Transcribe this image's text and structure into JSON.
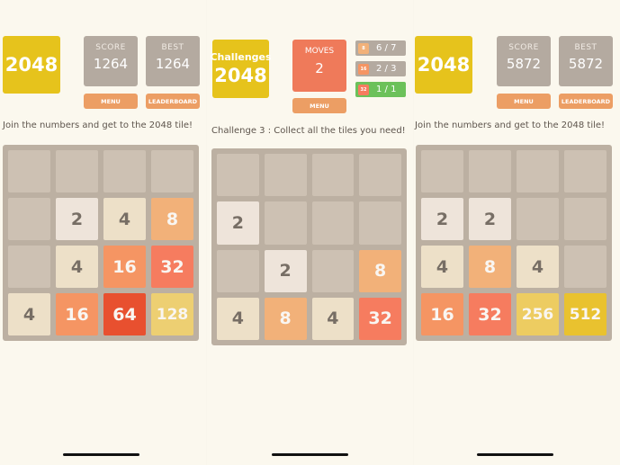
{
  "panels": [
    {
      "logo": "2048",
      "score_label": "SCORE",
      "score_value": "1264",
      "best_label": "BEST",
      "best_value": "1264",
      "menu_label": "MENU",
      "leaderboard_label": "LEADERBOARD",
      "tagline": "Join the numbers and get to the 2048 tile!",
      "grid": [
        [
          "",
          "",
          "",
          ""
        ],
        [
          "",
          "2",
          "4",
          "8"
        ],
        [
          "",
          "4",
          "16",
          "32"
        ],
        [
          "4",
          "16",
          "64",
          "128"
        ]
      ]
    },
    {
      "logo_top": "Challenges",
      "logo": "2048",
      "moves_label": "MOVES",
      "moves_value": "2",
      "menu_label": "MENU",
      "goals": [
        {
          "tile": "8",
          "progress": "6 / 7",
          "done": false
        },
        {
          "tile": "16",
          "progress": "2 / 3",
          "done": false
        },
        {
          "tile": "32",
          "progress": "1 / 1",
          "done": true
        }
      ],
      "tagline": "Challenge 3 : Collect all the tiles you need!",
      "grid": [
        [
          "",
          "",
          "",
          ""
        ],
        [
          "2",
          "",
          "",
          ""
        ],
        [
          "",
          "2",
          "",
          "8"
        ],
        [
          "4",
          "8",
          "4",
          "32"
        ]
      ]
    },
    {
      "logo": "2048",
      "score_label": "SCORE",
      "score_value": "5872",
      "best_label": "BEST",
      "best_value": "5872",
      "menu_label": "MENU",
      "leaderboard_label": "LEADERBOARD",
      "tagline": "Join the numbers and get to the 2048 tile!",
      "grid": [
        [
          "",
          "",
          "",
          ""
        ],
        [
          "2",
          "2",
          "",
          ""
        ],
        [
          "4",
          "8",
          "4",
          ""
        ],
        [
          "16",
          "32",
          "256",
          "512"
        ]
      ]
    }
  ],
  "tile_colors": {
    "empty": "#cdc1b3",
    "2": "#eee4da",
    "4": "#ede0c8",
    "8": "#f2b179",
    "16": "#f59563",
    "32": "#f67c5f",
    "64": "#e8502f",
    "128": "#edcf72",
    "256": "#edcc61",
    "512": "#e9c22f"
  }
}
